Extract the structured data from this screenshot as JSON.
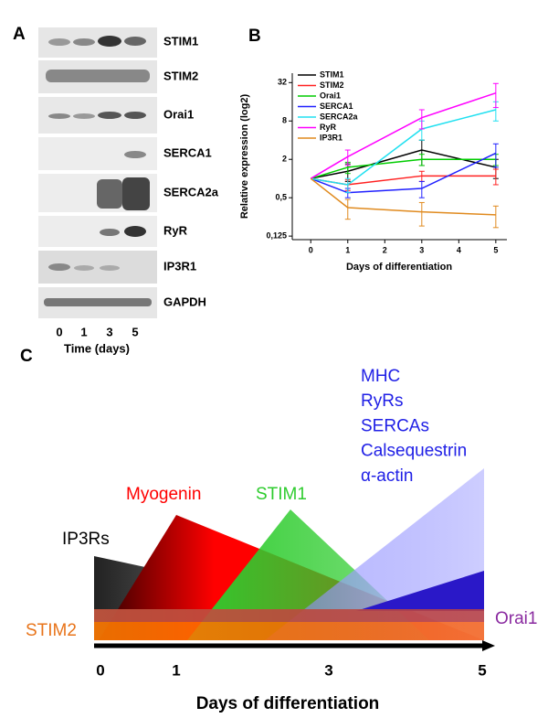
{
  "panel_a": {
    "label": "A",
    "proteins": [
      "STIM1",
      "STIM2",
      "Orai1",
      "SERCA1",
      "SERCA2a",
      "RyR",
      "IP3R1",
      "GAPDH"
    ],
    "lanes": [
      "0",
      "1",
      "3",
      "5"
    ],
    "xlabel": "Time (days)"
  },
  "chart_data": {
    "type": "line",
    "panel_label": "B",
    "xlabel": "Days of differentiation",
    "ylabel": "Relative expression (log2)",
    "x": [
      0,
      1,
      3,
      5
    ],
    "xlim": [
      -0.5,
      5.3
    ],
    "xticks": [
      0,
      1,
      2,
      3,
      4,
      5
    ],
    "ylim": [
      0.11,
      45
    ],
    "ylog": true,
    "yticks": [
      {
        "value": 0.125,
        "label": "0,125"
      },
      {
        "value": 0.5,
        "label": "0,5"
      },
      2,
      8,
      32
    ],
    "legend": "upper left",
    "series": [
      {
        "name": "STIM1",
        "color": "#000000",
        "values": [
          1,
          1.3,
          2.8,
          1.5
        ],
        "errors": [
          null,
          0.4,
          1.2,
          0.5
        ]
      },
      {
        "name": "STIM2",
        "color": "#ff2020",
        "values": [
          1,
          0.8,
          1.1,
          1.1
        ],
        "errors": [
          null,
          0.15,
          0.2,
          0.3
        ]
      },
      {
        "name": "Orai1",
        "color": "#00cc00",
        "values": [
          1,
          1.5,
          2,
          2
        ],
        "errors": [
          null,
          0.3,
          0.4,
          0.4
        ]
      },
      {
        "name": "SERCA1",
        "color": "#2020ff",
        "values": [
          1,
          0.6,
          0.7,
          2.5
        ],
        "errors": [
          null,
          0.1,
          0.2,
          1.0
        ]
      },
      {
        "name": "SERCA2a",
        "color": "#20e0f0",
        "values": [
          1,
          0.8,
          6,
          12
        ],
        "errors": [
          null,
          0.2,
          2,
          4
        ]
      },
      {
        "name": "RyR",
        "color": "#ff00ff",
        "values": [
          1,
          2.2,
          9,
          22
        ],
        "errors": [
          null,
          0.6,
          3,
          9
        ]
      },
      {
        "name": "IP3R1",
        "color": "#e08a1e",
        "values": [
          1,
          0.35,
          0.3,
          0.27
        ],
        "errors": [
          null,
          0.12,
          0.12,
          0.1
        ]
      }
    ]
  },
  "panel_c": {
    "label": "C",
    "late_markers": [
      "MHC",
      "RyRs",
      "SERCAs",
      "Calsequestrin",
      "α-actin"
    ],
    "myogenin": "Myogenin",
    "stim1": "STIM1",
    "ip3rs": "IP3Rs",
    "stim2": "STIM2",
    "orai1": "Orai1",
    "days": [
      "0",
      "1",
      "3",
      "5"
    ],
    "xlabel": "Days of differentiation"
  }
}
